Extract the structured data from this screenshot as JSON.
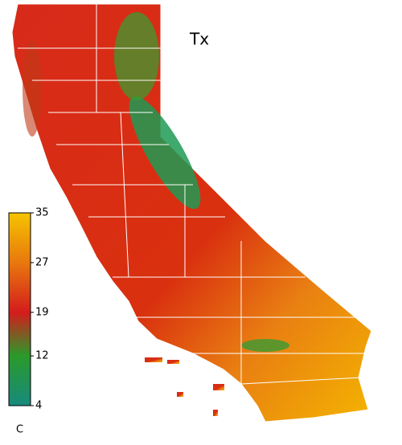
{
  "title": "Tx",
  "colorbar": {
    "unit": "C",
    "lim": [
      4,
      35
    ],
    "ticks": [
      35,
      27,
      19,
      12,
      4
    ],
    "colors": [
      "#f5c400",
      "#e8780e",
      "#d41c1c",
      "#2a9a2a",
      "#178a7e"
    ]
  }
}
